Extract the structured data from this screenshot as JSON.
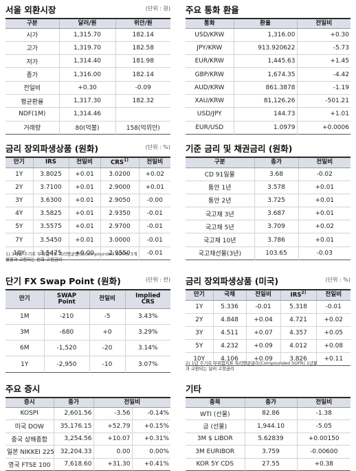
{
  "seoul_fx": {
    "title": "서울 외환시장",
    "unit": "(단위 : 원)",
    "headers": [
      "구분",
      "달러/원",
      "위안/원"
    ],
    "rows": [
      [
        "시가",
        "1,315.70",
        "182.14"
      ],
      [
        "고가",
        "1,319.70",
        "182.58"
      ],
      [
        "저가",
        "1,314.40",
        "181.98"
      ],
      [
        "종가",
        "1,316.00",
        "182.14"
      ],
      [
        "전일비",
        "+0.30",
        "-0.09"
      ],
      [
        "평균환율",
        "1,317.30",
        "182.32"
      ],
      [
        "NDF(1M)",
        "1,314.46",
        ""
      ],
      [
        "거래량",
        "80(억불)",
        "158(억위안)"
      ]
    ]
  },
  "major_fx": {
    "title": "주요 통화 환율",
    "headers": [
      "통화",
      "환율",
      "전일비"
    ],
    "rows": [
      [
        "USD/KRW",
        "1,316.00",
        "+0.30"
      ],
      [
        "JPY/KRW",
        "913.920622",
        "-5.73"
      ],
      [
        "EUR/KRW",
        "1,445.63",
        "+1.45"
      ],
      [
        "GBP/KRW",
        "1,674.35",
        "-4.42"
      ],
      [
        "AUD/KRW",
        "861.3878",
        "-1.19"
      ],
      [
        "XAU/KRW",
        "81,126.26",
        "-501.21"
      ],
      [
        "USD/JPY",
        "144.73",
        "+1.01"
      ],
      [
        "EUR/USD",
        "1.0979",
        "+0.0006"
      ]
    ]
  },
  "short_fx_deriv": {
    "title": "금리 장외파생상품 (원화)",
    "unit": "(단위 : %)",
    "headers": [
      "만기",
      "IRS",
      "전일비",
      "CRS",
      "전일비"
    ],
    "crs_sup": "1)",
    "rows": [
      [
        "1Y",
        "3.8025",
        "+0.01",
        "3.0200",
        "+0.02"
      ],
      [
        "2Y",
        "3.7100",
        "+0.01",
        "2.9000",
        "+0.01"
      ],
      [
        "3Y",
        "3.6300",
        "+0.01",
        "2.9050",
        "-0.00"
      ],
      [
        "4Y",
        "3.5825",
        "+0.01",
        "2.9350",
        "-0.01"
      ],
      [
        "5Y",
        "3.5575",
        "+0.01",
        "2.9700",
        "-0.01"
      ],
      [
        "7Y",
        "3.5450",
        "+0.01",
        "3.0000",
        "-0.01"
      ],
      [
        "10Y",
        "3.5475",
        "+0.00",
        "2.9550",
        "-0.01"
      ]
    ],
    "footnote1": "1) 3개월 주기로 무위험지표 복리평균금리(Compounded SOFR) 3개",
    "footnote2": "월물과 교환되는 원화 고정금리"
  },
  "base_rates": {
    "title": "기준 금리 및 채권금리 (원화)",
    "headers": [
      "구분",
      "종가",
      "전일비"
    ],
    "rows": [
      [
        "CD 91일물",
        "3.68",
        "-0.02"
      ],
      [
        "통안 1년",
        "3.578",
        "+0.01"
      ],
      [
        "통안 2년",
        "3.725",
        "+0.01"
      ],
      [
        "국고채 3년",
        "3.687",
        "+0.01"
      ],
      [
        "국고채 5년",
        "3.709",
        "+0.02"
      ],
      [
        "국고채 10년",
        "3.786",
        "+0.01"
      ],
      [
        "국고채선물(3년)",
        "103.65",
        "-0.03"
      ]
    ]
  },
  "swap_point": {
    "title": "단기 FX Swap Point (원화)",
    "unit": "(단위 : 전)",
    "headers": [
      "만기",
      "SWAP Point",
      "전일비",
      "Implied CRS"
    ],
    "header_lines": [
      [
        "만기"
      ],
      [
        "SWAP",
        "Point"
      ],
      [
        "전일비"
      ],
      [
        "Implied",
        "CRS"
      ]
    ],
    "rows": [
      [
        "1M",
        "-210",
        "-5",
        "3.43%"
      ],
      [
        "3M",
        "-680",
        "+0",
        "3.29%"
      ],
      [
        "6M",
        "-1,520",
        "-20",
        "3.14%"
      ],
      [
        "1Y",
        "-2,950",
        "-10",
        "3.07%"
      ]
    ]
  },
  "us_deriv": {
    "title": "금리 장외파생상품 (미국)",
    "unit": "(단위 : %)",
    "headers": [
      "만기",
      "국채",
      "전일비",
      "IRS",
      "전일비"
    ],
    "irs_sup": "2)",
    "rows": [
      [
        "1Y",
        "5.336",
        "-0.01",
        "5.318",
        "-0.01"
      ],
      [
        "2Y",
        "4.848",
        "+0.04",
        "4.721",
        "+0.02"
      ],
      [
        "3Y",
        "4.511",
        "+0.07",
        "4.357",
        "+0.05"
      ],
      [
        "5Y",
        "4.232",
        "+0.09",
        "4.012",
        "+0.08"
      ],
      [
        "10Y",
        "4.106",
        "+0.09",
        "3.826",
        "+0.11"
      ]
    ],
    "footnote1": "2) 1년 주기로 무위험지표 복리평균금리(Compounded SOFR) 1년물",
    "footnote2": "과 교환되는 달러 고정금리"
  },
  "stocks": {
    "title": "주요 증시",
    "headers": [
      "증시",
      "종가",
      "전일비"
    ],
    "rows": [
      [
        "KOSPI",
        "2,601.56",
        "-3.56",
        "-0.14%"
      ],
      [
        "미국 DOW",
        "35,176.15",
        "+52.79",
        "+0.15%"
      ],
      [
        "중국 상해종합",
        "3,254.56",
        "+10.07",
        "+0.31%"
      ],
      [
        "일본 NIKKEI 225",
        "32,204.33",
        "0.00",
        "0.00%"
      ],
      [
        "영국 FTSE 100",
        "7,618.60",
        "+31.30",
        "+0.41%"
      ]
    ]
  },
  "others": {
    "title": "기타",
    "headers": [
      "종목",
      "종가",
      "전일비"
    ],
    "rows": [
      [
        "WTI (선물)",
        "82.86",
        "-1.38"
      ],
      [
        "금 (선물)",
        "1,944.10",
        "-5.05"
      ],
      [
        "3M $ LIBOR",
        "5.62839",
        "+0.00150"
      ],
      [
        "3M EURIBOR",
        "3.759",
        "-0.00600"
      ],
      [
        "KOR 5Y CDS",
        "27.55",
        "+0.38"
      ]
    ]
  }
}
